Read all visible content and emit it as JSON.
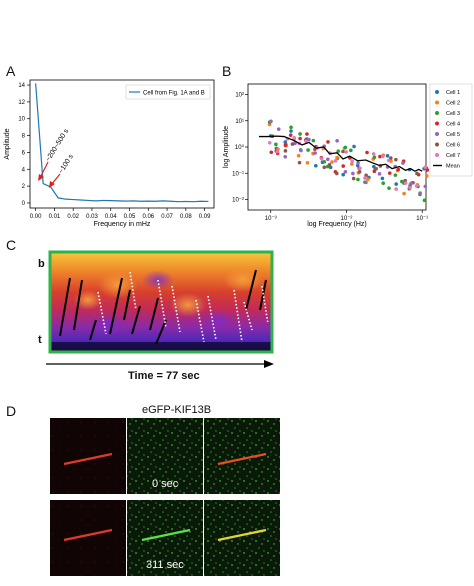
{
  "panels": {
    "a": {
      "letter": "A"
    },
    "b": {
      "letter": "B"
    },
    "c": {
      "letter": "C"
    },
    "d": {
      "letter": "D"
    }
  },
  "chart_data": [
    {
      "type": "line",
      "panel": "A",
      "xlabel": "Frequency in mHz",
      "ylabel": "Amplitude",
      "xlim": [
        -0.003,
        0.095
      ],
      "ylim": [
        -0.6,
        14.6
      ],
      "xticks": [
        "0.00",
        "0.01",
        "0.02",
        "0.03",
        "0.04",
        "0.05",
        "0.06",
        "0.07",
        "0.08",
        "0.09"
      ],
      "xtick_values": [
        0,
        0.01,
        0.02,
        0.03,
        0.04,
        0.05,
        0.06,
        0.07,
        0.08,
        0.09
      ],
      "yticks": [
        "0",
        "2",
        "4",
        "6",
        "8",
        "10",
        "12",
        "14"
      ],
      "ytick_values": [
        0,
        2,
        4,
        6,
        8,
        10,
        12,
        14
      ],
      "legend": "Cell from Fig. 1A and B",
      "legend_position": "top-right",
      "series_color": "#1f77b4",
      "annotation_color": "#e02020",
      "annotations": [
        "~200~500 s",
        "~100 s"
      ],
      "x": [
        0.0,
        0.004,
        0.008,
        0.012,
        0.016,
        0.02,
        0.024,
        0.028,
        0.032,
        0.036,
        0.04,
        0.044,
        0.048,
        0.052,
        0.056,
        0.06,
        0.064,
        0.068,
        0.072,
        0.076,
        0.08,
        0.084,
        0.088,
        0.092
      ],
      "y": [
        14.2,
        2.3,
        1.9,
        0.6,
        0.45,
        0.4,
        0.35,
        0.3,
        0.25,
        0.3,
        0.28,
        0.25,
        0.22,
        0.25,
        0.2,
        0.22,
        0.2,
        0.25,
        0.2,
        0.15,
        0.18,
        0.15,
        0.2,
        0.18
      ]
    },
    {
      "type": "scatter",
      "panel": "B",
      "xlabel": "log Frequency (Hz)",
      "ylabel": "log Amplitude",
      "xscale": "log",
      "yscale": "log",
      "xlim": [
        0.0006,
        0.0012
      ],
      "xticks": [
        "10⁻³",
        "10⁻²",
        "10⁻¹"
      ],
      "yticks": [
        "10⁻²",
        "10⁻¹",
        "10⁰",
        "10¹",
        "10²"
      ],
      "legend_position": "outside-right",
      "series": [
        {
          "name": "Cell 1",
          "color": "#1f77b4"
        },
        {
          "name": "Cell 2",
          "color": "#ff7f0e"
        },
        {
          "name": "Cell 3",
          "color": "#2ca02c"
        },
        {
          "name": "Cell 4",
          "color": "#d62728"
        },
        {
          "name": "Cell 5",
          "color": "#9467bd"
        },
        {
          "name": "Cell 6",
          "color": "#8c564b"
        },
        {
          "name": "Cell 7",
          "color": "#e377c2"
        },
        {
          "name": "Mean",
          "color": "#000000"
        }
      ],
      "mean_x": [
        0.0007,
        0.0009,
        0.0012,
        0.0015,
        0.002,
        0.0026,
        0.0032,
        0.004,
        0.005,
        0.006,
        0.0075,
        0.009,
        0.011,
        0.014,
        0.018,
        0.022,
        0.027,
        0.033,
        0.04,
        0.05,
        0.06,
        0.07,
        0.08,
        0.09,
        0.1
      ],
      "mean_y": [
        2.5,
        2.5,
        2.6,
        2.5,
        1.8,
        1.2,
        1.5,
        0.9,
        1.0,
        0.55,
        0.6,
        0.35,
        0.45,
        0.3,
        0.32,
        0.25,
        0.2,
        0.22,
        0.15,
        0.18,
        0.13,
        0.15,
        0.12,
        0.14,
        0.12
      ]
    }
  ],
  "kymograph": {
    "label_top": "b",
    "label_bottom": "t",
    "time_label": "Time = 77 sec",
    "border_color": "#2db34a"
  },
  "microscopy": {
    "title": "eGFP-KIF13B",
    "time_top": "0 sec",
    "time_bottom": "311 sec"
  }
}
